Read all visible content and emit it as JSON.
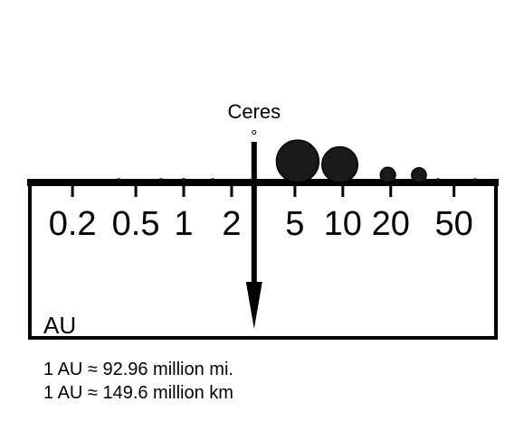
{
  "chart_data": {
    "type": "scatter",
    "scale": "log",
    "unit_label": "AU",
    "ticks": [
      {
        "value": 0.2,
        "label": "0.2"
      },
      {
        "value": 0.5,
        "label": "0.5"
      },
      {
        "value": 1,
        "label": "1"
      },
      {
        "value": 2,
        "label": "2"
      },
      {
        "value": 5,
        "label": "5"
      },
      {
        "value": 10,
        "label": "10"
      },
      {
        "value": 20,
        "label": "20"
      },
      {
        "value": 50,
        "label": "50"
      }
    ],
    "bodies": [
      {
        "distance_au": 0.39,
        "relative_size": 0.38
      },
      {
        "distance_au": 0.72,
        "relative_size": 0.95
      },
      {
        "distance_au": 1.0,
        "relative_size": 1.0
      },
      {
        "distance_au": 1.52,
        "relative_size": 0.53
      },
      {
        "distance_au": 5.2,
        "relative_size": 11.2
      },
      {
        "distance_au": 9.58,
        "relative_size": 9.45
      },
      {
        "distance_au": 19.2,
        "relative_size": 4.0
      },
      {
        "distance_au": 30.1,
        "relative_size": 3.88
      },
      {
        "distance_au": 39.5,
        "relative_size": 0.19
      },
      {
        "distance_au": 67.8,
        "relative_size": 0.18
      }
    ],
    "highlight": {
      "name": "Ceres",
      "distance_au": 2.77,
      "relative_size": 0.07
    }
  },
  "conversions": [
    "1 AU ≈ 92.96 million mi.",
    "1 AU ≈ 149.6 million km"
  ]
}
